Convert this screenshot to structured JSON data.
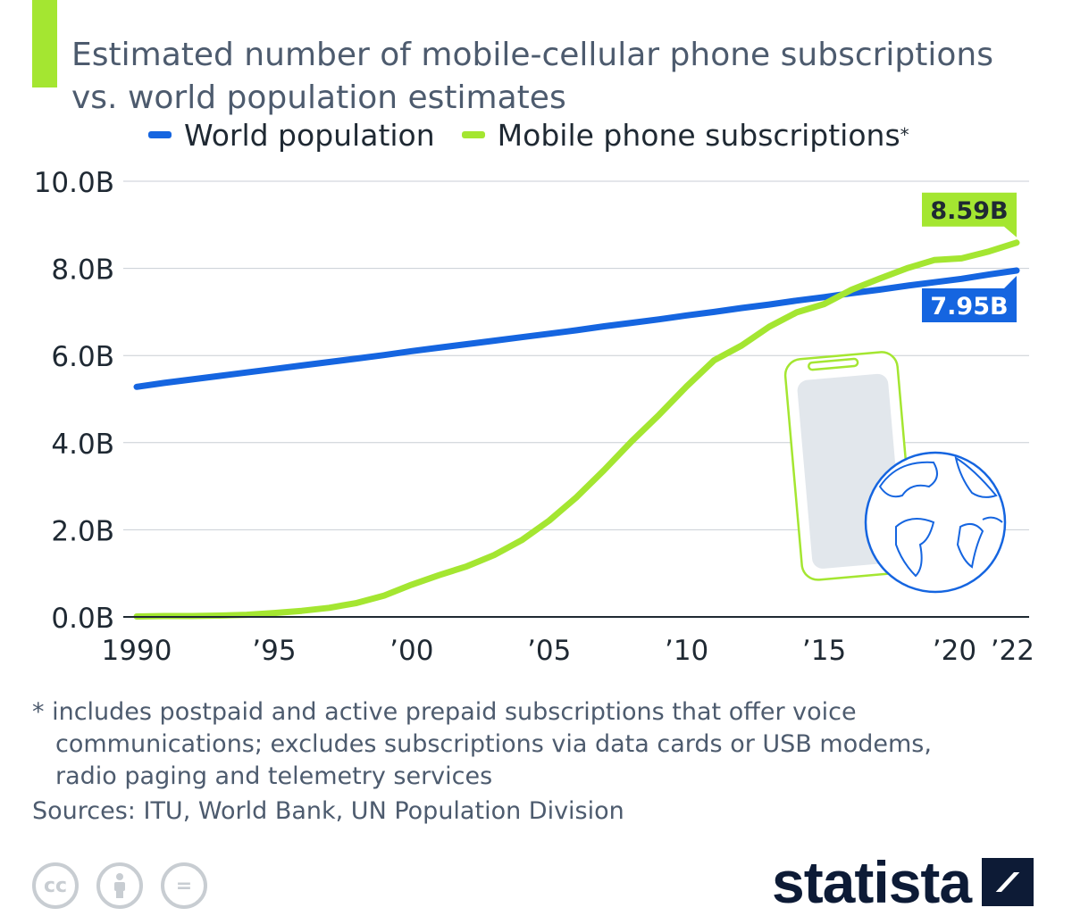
{
  "header": {
    "title": "Estimated number of mobile-cellular phone subscriptions vs. world population estimates"
  },
  "legend": {
    "population_label": "World population",
    "mobile_label": "Mobile phone subscriptions",
    "mobile_marker": "*"
  },
  "colors": {
    "population": "#1565e0",
    "mobile": "#a4e631",
    "accent_bar": "#a4e631",
    "grid": "#c9ced4"
  },
  "chart_data": {
    "type": "line",
    "title": "Estimated number of mobile-cellular phone subscriptions vs. world population estimates",
    "xlabel": "",
    "ylabel": "",
    "ylim": [
      0,
      10
    ],
    "y_unit": "B",
    "x": [
      1990,
      1991,
      1992,
      1993,
      1994,
      1995,
      1996,
      1997,
      1998,
      1999,
      2000,
      2001,
      2002,
      2003,
      2004,
      2005,
      2006,
      2007,
      2008,
      2009,
      2010,
      2011,
      2012,
      2013,
      2014,
      2015,
      2016,
      2017,
      2018,
      2019,
      2020,
      2021,
      2022
    ],
    "y_ticks": [
      "0.0B",
      "2.0B",
      "4.0B",
      "6.0B",
      "8.0B",
      "10.0B"
    ],
    "x_ticks": [
      {
        "year": 1990,
        "label": "1990"
      },
      {
        "year": 1995,
        "label": "’95"
      },
      {
        "year": 2000,
        "label": "’00"
      },
      {
        "year": 2005,
        "label": "’05"
      },
      {
        "year": 2010,
        "label": "’10"
      },
      {
        "year": 2015,
        "label": "’15"
      },
      {
        "year": 2020,
        "label": "’20"
      },
      {
        "year": 2022,
        "label": "’22"
      }
    ],
    "series": [
      {
        "name": "World population",
        "values": [
          5.28,
          5.37,
          5.45,
          5.53,
          5.61,
          5.69,
          5.77,
          5.85,
          5.93,
          6.01,
          6.1,
          6.18,
          6.26,
          6.34,
          6.42,
          6.5,
          6.58,
          6.67,
          6.75,
          6.83,
          6.92,
          7.0,
          7.09,
          7.17,
          7.26,
          7.34,
          7.43,
          7.51,
          7.6,
          7.68,
          7.76,
          7.86,
          7.95
        ],
        "end_label": "7.95B"
      },
      {
        "name": "Mobile phone subscriptions",
        "values": [
          0.01,
          0.02,
          0.02,
          0.03,
          0.05,
          0.09,
          0.14,
          0.21,
          0.32,
          0.49,
          0.74,
          0.96,
          1.16,
          1.42,
          1.76,
          2.21,
          2.75,
          3.37,
          4.03,
          4.64,
          5.29,
          5.89,
          6.23,
          6.66,
          6.99,
          7.18,
          7.51,
          7.76,
          8.0,
          8.19,
          8.23,
          8.39,
          8.59
        ],
        "end_label": "8.59B"
      }
    ]
  },
  "footer": {
    "footnote_line1": "* includes postpaid and active prepaid subscriptions that offer voice",
    "footnote_line2": "communications; excludes subscriptions via data cards or USB modems,",
    "footnote_line3": "radio paging and telemetry services",
    "sources": "Sources: ITU, World Bank, UN Population Division",
    "brand": "statista",
    "cc_icons": [
      "cc-icon",
      "attribution-icon",
      "no-derivatives-icon"
    ],
    "cc_glyph": "cc",
    "nd_glyph": "="
  }
}
